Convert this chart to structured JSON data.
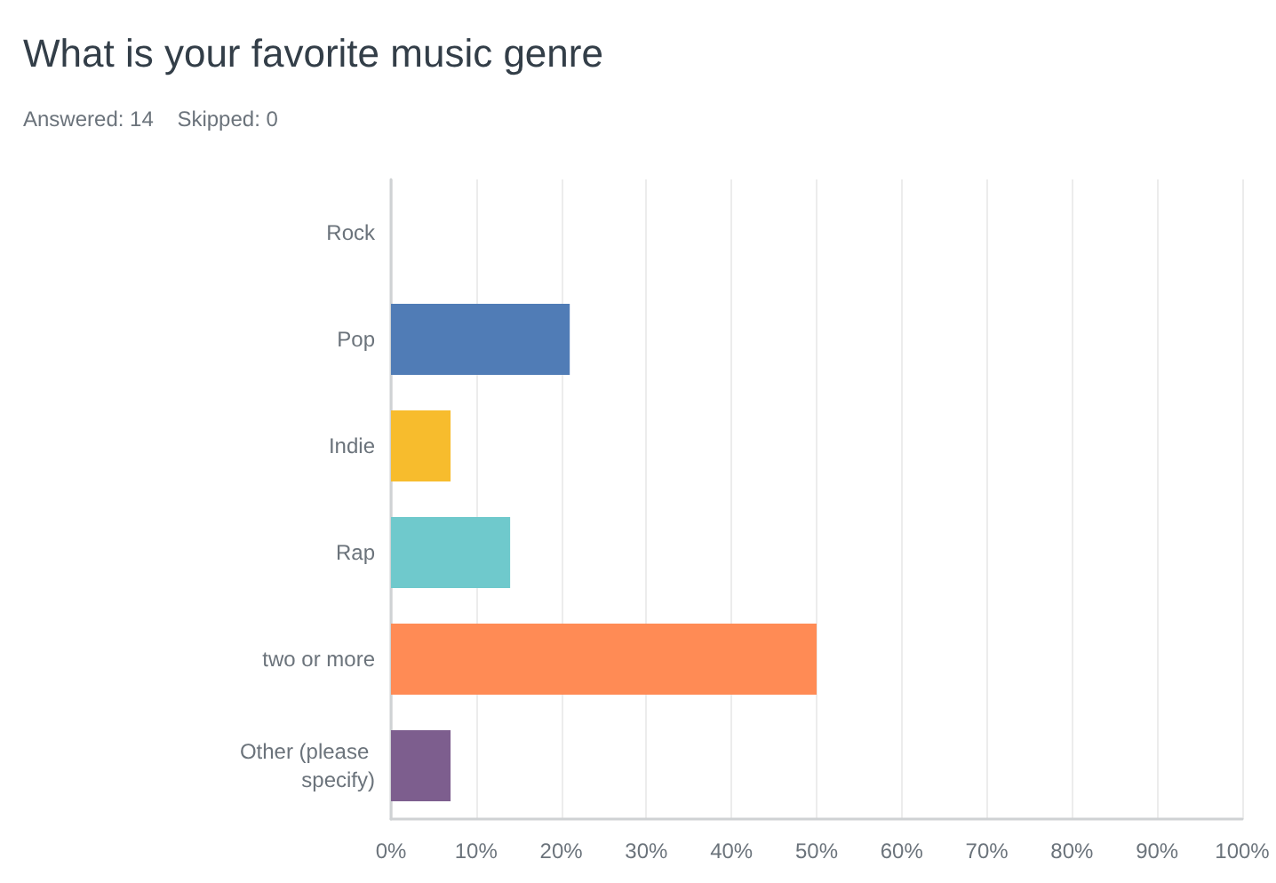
{
  "chart_data": {
    "type": "bar",
    "orientation": "horizontal",
    "title": "What is your favorite music genre",
    "subtitle": "Answered: 14    Skipped: 0",
    "categories": [
      "Rock",
      "Pop",
      "Indie",
      "Rap",
      "two or more",
      "Other (please specify)"
    ],
    "values": [
      0,
      21,
      7,
      14,
      50,
      7
    ],
    "colors": [
      null,
      "#507cb6",
      "#f7bc2d",
      "#6fc9cc",
      "#ff8b55",
      "#7d5e8e"
    ],
    "xlim": [
      0,
      100
    ],
    "xticks": [
      {
        "value": 0,
        "label": "0%"
      },
      {
        "value": 10,
        "label": "10%"
      },
      {
        "value": 20,
        "label": "20%"
      },
      {
        "value": 30,
        "label": "30%"
      },
      {
        "value": 40,
        "label": "40%"
      },
      {
        "value": 50,
        "label": "50%"
      },
      {
        "value": 60,
        "label": "60%"
      },
      {
        "value": 70,
        "label": "70%"
      },
      {
        "value": 80,
        "label": "80%"
      },
      {
        "value": 90,
        "label": "90%"
      },
      {
        "value": 100,
        "label": "100%"
      }
    ],
    "grid": "x"
  }
}
